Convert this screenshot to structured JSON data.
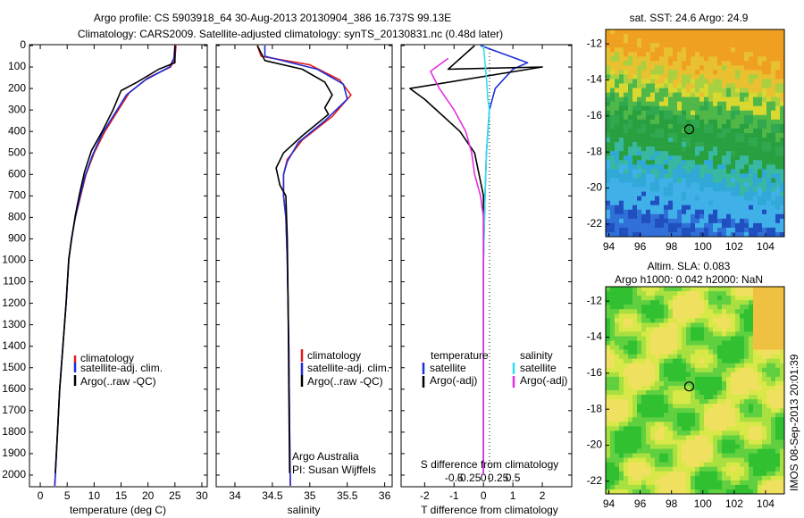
{
  "titles": {
    "line1": "Argo profile: CS 5903918_64 30-Aug-2013 20130904_386 16.737S 99.13E",
    "line2": "Climatology: CARS2009. Satellite-adjusted climatology: synTS_20130831.nc (0.48d later)"
  },
  "credit": {
    "line1": "Argo Australia",
    "line2": "PI: Susan Wijffels"
  },
  "timestamp": "IMOS 08-Sep-2013 20:01:39",
  "colors": {
    "climatology": "#e41a1c",
    "satellite": "#1f2fd6",
    "argo": "#000000",
    "sal_satellite": "#30e0f0",
    "sal_argo": "#e030e0"
  },
  "legend": {
    "climatology": "climatology",
    "satellite": "satellite-adj. clim.",
    "argo": "Argo(..raw -QC)",
    "diff_temperature": "temperature",
    "diff_salinity": "salinity",
    "diff_satellite": "satellite",
    "diff_argo": "Argo(-adj)"
  },
  "maps": {
    "sst_title": "sat. SST: 24.6 Argo: 24.9",
    "sla_title1": "Altim. SLA: 0.083",
    "sla_title2": "Argo h1000: 0.042 h2000: NaN",
    "x_ticks": [
      "94",
      "96",
      "98",
      "100",
      "102",
      "104"
    ],
    "y_ticks": [
      "-12",
      "-14",
      "-16",
      "-18",
      "-20",
      "-22"
    ],
    "marker": {
      "lon": 99.13,
      "lat": -16.737
    }
  },
  "chart_data": [
    {
      "type": "line",
      "xlabel": "temperature (deg C)",
      "ylabel": "",
      "xlim": [
        -2,
        31
      ],
      "ylim": [
        2050,
        0
      ],
      "xticks": [
        0,
        5,
        10,
        15,
        20,
        25,
        30
      ],
      "yticks": [
        0,
        100,
        200,
        300,
        400,
        500,
        600,
        700,
        800,
        900,
        1000,
        1100,
        1200,
        1300,
        1400,
        1500,
        1600,
        1700,
        1800,
        1900,
        2000
      ],
      "series": [
        {
          "name": "climatology",
          "color": "#e41a1c",
          "points": [
            [
              25.2,
              0
            ],
            [
              25.0,
              60
            ],
            [
              24.2,
              100
            ],
            [
              20,
              150
            ],
            [
              16.5,
              220
            ],
            [
              14.5,
              300
            ],
            [
              12,
              400
            ],
            [
              10,
              500
            ],
            [
              8.5,
              600
            ],
            [
              7.5,
              700
            ],
            [
              6.5,
              800
            ],
            [
              5.8,
              900
            ],
            [
              5.3,
              1000
            ],
            [
              4.8,
              1200
            ],
            [
              4.2,
              1400
            ],
            [
              3.6,
              1600
            ],
            [
              3.2,
              1800
            ],
            [
              2.7,
              2050
            ]
          ]
        },
        {
          "name": "satellite-adj. clim.",
          "color": "#1f2fd6",
          "points": [
            [
              25.0,
              0
            ],
            [
              24.8,
              60
            ],
            [
              24.0,
              100
            ],
            [
              19.5,
              160
            ],
            [
              16,
              230
            ],
            [
              14,
              310
            ],
            [
              11.5,
              410
            ],
            [
              9.7,
              510
            ],
            [
              8.3,
              610
            ],
            [
              7.4,
              700
            ],
            [
              6.5,
              800
            ],
            [
              5.8,
              900
            ],
            [
              5.3,
              1000
            ],
            [
              4.8,
              1200
            ],
            [
              4.2,
              1400
            ],
            [
              3.6,
              1600
            ],
            [
              3.2,
              1800
            ],
            [
              2.7,
              2050
            ]
          ]
        },
        {
          "name": "Argo(..raw -QC)",
          "color": "#000000",
          "points": [
            [
              25.0,
              0
            ],
            [
              25.0,
              80
            ],
            [
              22,
              110
            ],
            [
              18,
              170
            ],
            [
              15,
              210
            ],
            [
              13.5,
              300
            ],
            [
              11.5,
              400
            ],
            [
              9.5,
              490
            ],
            [
              8.2,
              590
            ],
            [
              7.3,
              690
            ],
            [
              6.5,
              790
            ],
            [
              5.9,
              890
            ],
            [
              5.3,
              990
            ],
            [
              4.8,
              1200
            ],
            [
              4.2,
              1400
            ],
            [
              3.6,
              1600
            ],
            [
              3.2,
              1800
            ],
            [
              2.8,
              1990
            ]
          ]
        }
      ]
    },
    {
      "type": "line",
      "xlabel": "salinity",
      "ylabel": "",
      "xlim": [
        33.75,
        36.1
      ],
      "ylim": [
        2050,
        0
      ],
      "xticks": [
        34,
        34.5,
        35,
        35.5,
        36
      ],
      "series": [
        {
          "name": "climatology",
          "color": "#e41a1c",
          "points": [
            [
              34.3,
              0
            ],
            [
              34.35,
              50
            ],
            [
              35.0,
              90
            ],
            [
              35.4,
              160
            ],
            [
              35.55,
              230
            ],
            [
              35.3,
              330
            ],
            [
              34.9,
              440
            ],
            [
              34.7,
              530
            ],
            [
              34.65,
              600
            ],
            [
              34.65,
              700
            ],
            [
              34.68,
              800
            ],
            [
              34.7,
              1000
            ],
            [
              34.72,
              1400
            ],
            [
              34.73,
              1800
            ],
            [
              34.74,
              2050
            ]
          ]
        },
        {
          "name": "satellite-adj. clim.",
          "color": "#1f2fd6",
          "points": [
            [
              34.4,
              0
            ],
            [
              34.4,
              50
            ],
            [
              35.1,
              110
            ],
            [
              35.45,
              180
            ],
            [
              35.5,
              250
            ],
            [
              35.2,
              350
            ],
            [
              34.85,
              450
            ],
            [
              34.7,
              540
            ],
            [
              34.65,
              600
            ],
            [
              34.65,
              700
            ],
            [
              34.68,
              800
            ],
            [
              34.7,
              1000
            ],
            [
              34.72,
              1400
            ],
            [
              34.73,
              1800
            ],
            [
              34.74,
              2050
            ]
          ]
        },
        {
          "name": "Argo(..raw -QC)",
          "color": "#000000",
          "points": [
            [
              34.3,
              0
            ],
            [
              34.4,
              70
            ],
            [
              34.9,
              110
            ],
            [
              35.2,
              170
            ],
            [
              35.3,
              230
            ],
            [
              35.2,
              290
            ],
            [
              35.25,
              320
            ],
            [
              34.9,
              420
            ],
            [
              34.65,
              500
            ],
            [
              34.55,
              570
            ],
            [
              34.6,
              650
            ],
            [
              34.68,
              700
            ],
            [
              34.7,
              900
            ],
            [
              34.71,
              1200
            ],
            [
              34.72,
              1600
            ],
            [
              34.73,
              1990
            ]
          ]
        }
      ]
    },
    {
      "type": "line",
      "title": "S difference from climatology",
      "xlabel": "T difference from climatology",
      "ylabel": "",
      "xlim": [
        -2.8,
        3.0
      ],
      "ylim": [
        2050,
        0
      ],
      "xticks": [
        -2,
        -1,
        0,
        1,
        2
      ],
      "top_ticks": [
        "-0.5",
        "-0.25",
        "0",
        "0.25",
        "0.5"
      ],
      "series": [
        {
          "name": "temperature satellite",
          "color": "#1f2fd6",
          "points": [
            [
              -0.1,
              0
            ],
            [
              1.5,
              80
            ],
            [
              1.0,
              110
            ],
            [
              0.4,
              200
            ],
            [
              0.2,
              300
            ],
            [
              0.1,
              500
            ],
            [
              0.05,
              700
            ],
            [
              0.0,
              1000
            ],
            [
              0.0,
              2000
            ]
          ]
        },
        {
          "name": "temperature Argo(-adj)",
          "color": "#000000",
          "points": [
            [
              -0.3,
              0
            ],
            [
              -1.2,
              110
            ],
            [
              2.0,
              100
            ],
            [
              -2.5,
              200
            ],
            [
              -2.0,
              250
            ],
            [
              -1.6,
              300
            ],
            [
              -0.8,
              400
            ],
            [
              -0.3,
              500
            ],
            [
              0.0,
              700
            ],
            [
              0.0,
              2000
            ]
          ]
        },
        {
          "name": "salinity satellite",
          "color": "#30e0f0",
          "points": [
            [
              0.0,
              0
            ],
            [
              0.05,
              80
            ],
            [
              0.1,
              150
            ],
            [
              0.15,
              250
            ],
            [
              0.2,
              300
            ],
            [
              0.1,
              500
            ],
            [
              0.05,
              700
            ],
            [
              0.0,
              1000
            ],
            [
              0.0,
              2000
            ]
          ]
        },
        {
          "name": "salinity Argo(-adj)",
          "color": "#e030e0",
          "points": [
            [
              -1.2,
              60
            ],
            [
              -1.8,
              120
            ],
            [
              -1.5,
              200
            ],
            [
              -1.0,
              300
            ],
            [
              -0.6,
              400
            ],
            [
              -0.4,
              500
            ],
            [
              -0.3,
              600
            ],
            [
              -0.1,
              700
            ],
            [
              0.0,
              800
            ],
            [
              0.0,
              2000
            ]
          ]
        }
      ]
    }
  ]
}
